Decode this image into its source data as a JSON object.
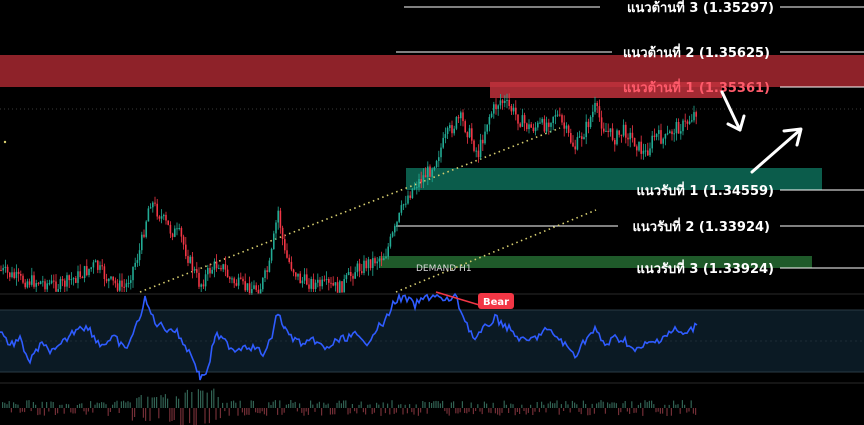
{
  "chart_data": {
    "type": "candlestick",
    "colors": {
      "up": "#22ab94",
      "down": "#f23645",
      "rsi_line": "#2f5cff",
      "resistance_zone": "#8e2229",
      "support_zone": "#0b5c4b",
      "demand_zone": "#1f5a2a",
      "trendline": "#d8cf70",
      "bear_label": "#f23645"
    },
    "levels": [
      {
        "label": "แนวต้านที่ 3 (1.35297)",
        "color": "#ffffff"
      },
      {
        "label": "แนวต้านที่ 2 (1.35625)",
        "color": "#ffffff"
      },
      {
        "label": "แนวต้านที่ 1 (1.35361)",
        "color": "#ff5b6b"
      },
      {
        "label": "แนวรับที่ 1 (1.34559)",
        "color": "#ffffff"
      },
      {
        "label": "แนวรับที่ 2 (1.33924)",
        "color": "#ffffff"
      },
      {
        "label": "แนวรับที่ 3 (1.33924)",
        "color": "#ffffff"
      }
    ],
    "zones": {
      "demand_label": "DEMAND H1"
    },
    "rsi": {
      "divergence_label": "Bear"
    },
    "arrows": [
      "down-right",
      "up-right"
    ]
  }
}
